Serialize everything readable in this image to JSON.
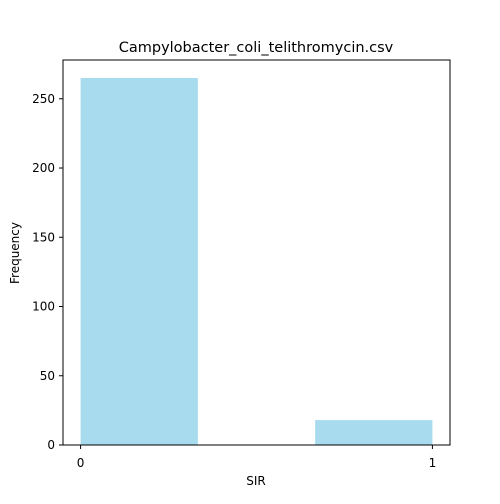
{
  "chart_data": {
    "type": "bar",
    "title": "Campylobacter_coli_telithromycin.csv",
    "xlabel": "SIR",
    "ylabel": "Frequency",
    "x_ticks": [
      0,
      1
    ],
    "y_ticks": [
      0,
      50,
      100,
      150,
      200,
      250
    ],
    "xlim": [
      -0.05,
      1.05
    ],
    "ylim": [
      0,
      278
    ],
    "grid": false,
    "legend": "none",
    "bar_color": "#a8dbee",
    "bars": [
      {
        "x_start": 0.0,
        "x_end": 0.3333,
        "value": 265
      },
      {
        "x_start": 0.6667,
        "x_end": 1.0,
        "value": 18
      }
    ]
  }
}
